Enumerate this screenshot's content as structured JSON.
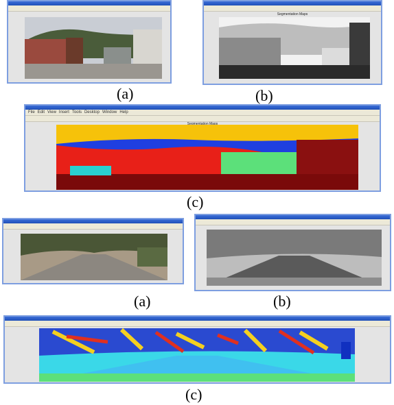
{
  "panels": [
    {
      "caption": "(a)"
    },
    {
      "caption": "(b)",
      "title": "Segmentation Maps"
    },
    {
      "caption": "(c)",
      "title": "Segmentation Maps",
      "menu": [
        "File",
        "Edit",
        "View",
        "Insert",
        "Tools",
        "Desktop",
        "Window",
        "Help"
      ]
    },
    {
      "caption": "(a)"
    },
    {
      "caption": "(b)"
    },
    {
      "caption": "(c)"
    }
  ]
}
